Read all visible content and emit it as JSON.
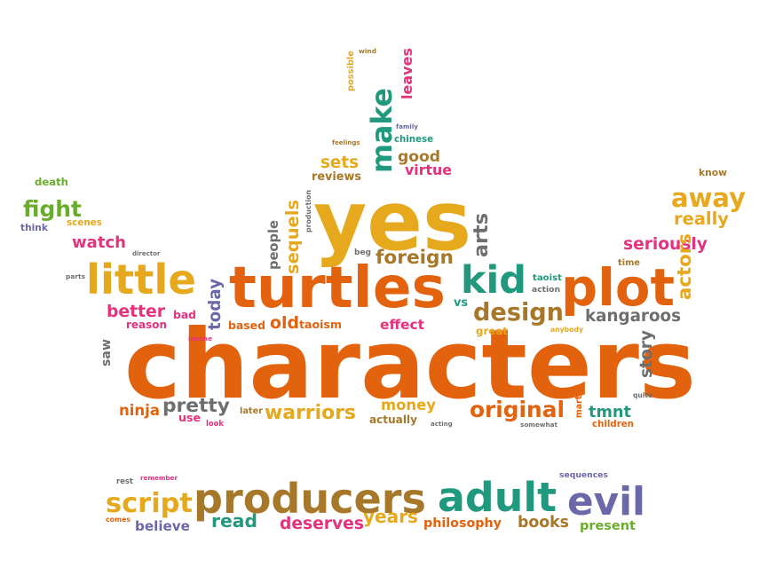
{
  "palette": {
    "orange": "#e2620e",
    "gold": "#e6a81c",
    "teal": "#21997e",
    "green": "#6aac2c",
    "pink": "#e4327f",
    "purple": "#6a68a8",
    "gray": "#6e6e6e",
    "brown": "#a7782a"
  },
  "words": [
    {
      "t": "characters",
      "c": "orange"
    },
    {
      "t": "yes",
      "c": "gold"
    },
    {
      "t": "turtles",
      "c": "orange"
    },
    {
      "t": "plot",
      "c": "orange"
    },
    {
      "t": "little",
      "c": "gold"
    },
    {
      "t": "make",
      "c": "teal"
    },
    {
      "t": "kid",
      "c": "teal"
    },
    {
      "t": "design",
      "c": "brown"
    },
    {
      "t": "away",
      "c": "gold"
    },
    {
      "t": "fight",
      "c": "green"
    },
    {
      "t": "producers",
      "c": "brown"
    },
    {
      "t": "adult",
      "c": "teal"
    },
    {
      "t": "evil",
      "c": "purple"
    },
    {
      "t": "script",
      "c": "gold"
    },
    {
      "t": "original",
      "c": "orange"
    },
    {
      "t": "warriors",
      "c": "gold"
    },
    {
      "t": "money",
      "c": "gold"
    },
    {
      "t": "pretty",
      "c": "gray"
    },
    {
      "t": "foreign",
      "c": "brown"
    },
    {
      "t": "kangaroos",
      "c": "gray"
    },
    {
      "t": "seriously",
      "c": "pink"
    },
    {
      "t": "really",
      "c": "gold"
    },
    {
      "t": "watch",
      "c": "pink"
    },
    {
      "t": "better",
      "c": "pink"
    },
    {
      "t": "effect",
      "c": "pink"
    },
    {
      "t": "taoism",
      "c": "orange"
    },
    {
      "t": "old",
      "c": "orange"
    },
    {
      "t": "based",
      "c": "orange"
    },
    {
      "t": "ninja",
      "c": "orange"
    },
    {
      "t": "tmnt",
      "c": "teal"
    },
    {
      "t": "story",
      "c": "gray"
    },
    {
      "t": "actors",
      "c": "gold"
    },
    {
      "t": "sequels",
      "c": "gold"
    },
    {
      "t": "people",
      "c": "gray"
    },
    {
      "t": "today",
      "c": "purple"
    },
    {
      "t": "arts",
      "c": "gray"
    },
    {
      "t": "saw",
      "c": "gray"
    },
    {
      "t": "good",
      "c": "brown"
    },
    {
      "t": "sets",
      "c": "gold"
    },
    {
      "t": "virtue",
      "c": "pink"
    },
    {
      "t": "reviews",
      "c": "brown"
    },
    {
      "t": "leaves",
      "c": "pink"
    },
    {
      "t": "read",
      "c": "teal"
    },
    {
      "t": "deserves",
      "c": "pink"
    },
    {
      "t": "years",
      "c": "gold"
    },
    {
      "t": "philosophy",
      "c": "orange"
    },
    {
      "t": "books",
      "c": "brown"
    },
    {
      "t": "present",
      "c": "green"
    },
    {
      "t": "believe",
      "c": "purple"
    },
    {
      "t": "death",
      "c": "green"
    },
    {
      "t": "scenes",
      "c": "gold"
    },
    {
      "t": "think",
      "c": "purple"
    },
    {
      "t": "parts",
      "c": "gray"
    },
    {
      "t": "director",
      "c": "gray"
    },
    {
      "t": "bad",
      "c": "pink"
    },
    {
      "t": "reason",
      "c": "pink"
    },
    {
      "t": "insane",
      "c": "pink"
    },
    {
      "t": "use",
      "c": "pink"
    },
    {
      "t": "look",
      "c": "pink"
    },
    {
      "t": "later",
      "c": "brown"
    },
    {
      "t": "actually",
      "c": "brown"
    },
    {
      "t": "acting",
      "c": "gray"
    },
    {
      "t": "somewhat",
      "c": "gray"
    },
    {
      "t": "great",
      "c": "gold"
    },
    {
      "t": "anybody",
      "c": "gold"
    },
    {
      "t": "martial",
      "c": "orange"
    },
    {
      "t": "quite",
      "c": "gray"
    },
    {
      "t": "children",
      "c": "orange"
    },
    {
      "t": "vs",
      "c": "teal"
    },
    {
      "t": "taoist",
      "c": "teal"
    },
    {
      "t": "action",
      "c": "gray"
    },
    {
      "t": "beg",
      "c": "gray"
    },
    {
      "t": "time",
      "c": "brown"
    },
    {
      "t": "know",
      "c": "brown"
    },
    {
      "t": "chinese",
      "c": "teal"
    },
    {
      "t": "family",
      "c": "purple"
    },
    {
      "t": "feelings",
      "c": "brown"
    },
    {
      "t": "production",
      "c": "gray"
    },
    {
      "t": "possible",
      "c": "gold"
    },
    {
      "t": "wind",
      "c": "brown"
    },
    {
      "t": "rest",
      "c": "gray"
    },
    {
      "t": "remember",
      "c": "pink"
    },
    {
      "t": "comes",
      "c": "orange"
    },
    {
      "t": "sequences",
      "c": "purple"
    }
  ]
}
